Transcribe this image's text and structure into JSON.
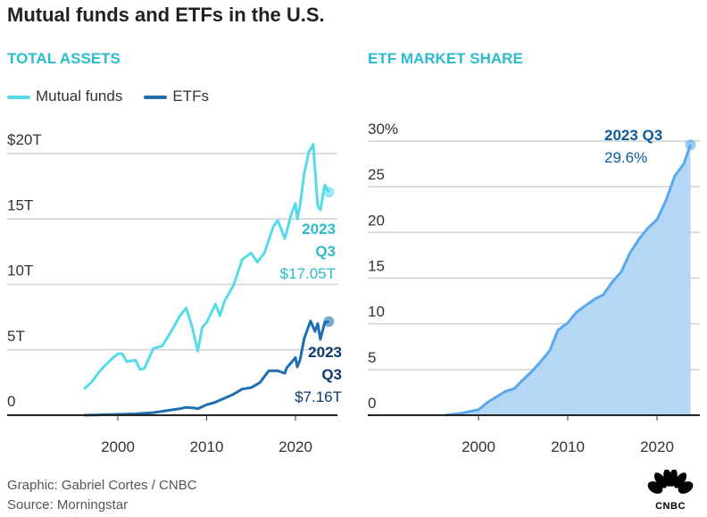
{
  "title": "Mutual funds and ETFs in the U.S.",
  "footer": {
    "graphic": "Graphic: Gabriel Cortes / CNBC",
    "source": "Source: Morningstar",
    "logo": "CNBC"
  },
  "chart_data": [
    {
      "type": "line",
      "title": "TOTAL ASSETS",
      "legend": "top-left",
      "grid": true,
      "ylim": [
        0,
        20
      ],
      "xlim": [
        1992.5,
        2024.5
      ],
      "y_ticks": [
        "0",
        "5T",
        "10T",
        "15T",
        "$20T"
      ],
      "y_tick_values": [
        0,
        5,
        10,
        15,
        20
      ],
      "x_ticks": [
        "2000",
        "2010",
        "2020"
      ],
      "x_tick_values": [
        2000,
        2010,
        2020
      ],
      "colors": {
        "Mutual funds": "#55dbe9",
        "ETFs": "#1f6fb0"
      },
      "series": [
        {
          "name": "Mutual funds",
          "x": [
            1996.2,
            1997,
            1998,
            1999,
            2000,
            2000.5,
            2001,
            2002,
            2002.5,
            2003,
            2004,
            2005,
            2006,
            2007,
            2007.7,
            2008.3,
            2009,
            2009.5,
            2010,
            2011,
            2011.5,
            2012,
            2013,
            2014,
            2015,
            2015.7,
            2016.5,
            2017.5,
            2018,
            2018.8,
            2019.5,
            2020,
            2020.2,
            2020.5,
            2021,
            2021.5,
            2022,
            2022.5,
            2022.8,
            2023.3,
            2023.75
          ],
          "y": [
            2.0,
            2.5,
            3.4,
            4.1,
            4.7,
            4.7,
            4.1,
            4.2,
            3.5,
            3.6,
            5.1,
            5.3,
            6.4,
            7.6,
            8.2,
            6.9,
            4.9,
            6.7,
            7.1,
            8.5,
            7.6,
            8.7,
            9.9,
            11.9,
            12.4,
            11.7,
            12.4,
            14.4,
            14.9,
            13.5,
            15.3,
            16.2,
            15.0,
            16.0,
            18.5,
            20.1,
            20.7,
            16.0,
            15.7,
            17.6,
            17.05
          ],
          "annotation": {
            "period": "2023",
            "quarter": "Q3",
            "value": "$17.05T"
          }
        },
        {
          "name": "ETFs",
          "x": [
            1996.2,
            1998,
            2000,
            2002,
            2004,
            2005,
            2006,
            2007,
            2007.7,
            2008.5,
            2009,
            2010,
            2011,
            2012,
            2013,
            2014,
            2015,
            2016,
            2017,
            2018,
            2018.8,
            2019,
            2020,
            2020.2,
            2020.5,
            2021,
            2021.7,
            2022.2,
            2022.5,
            2022.8,
            2023.3,
            2023.75
          ],
          "y": [
            0,
            0.03,
            0.07,
            0.1,
            0.2,
            0.3,
            0.4,
            0.5,
            0.6,
            0.55,
            0.5,
            0.8,
            1.0,
            1.3,
            1.6,
            2.0,
            2.1,
            2.5,
            3.4,
            3.4,
            3.2,
            3.6,
            4.4,
            3.7,
            4.2,
            5.9,
            7.2,
            6.4,
            7.0,
            5.8,
            7.1,
            7.16
          ],
          "annotation": {
            "period": "2023",
            "quarter": "Q3",
            "value": "$7.16T"
          }
        }
      ]
    },
    {
      "type": "area",
      "title": "ETF MARKET SHARE",
      "grid": true,
      "ylim": [
        0,
        30
      ],
      "xlim": [
        1987.5,
        2024.7
      ],
      "y_ticks": [
        "0",
        "5",
        "10",
        "15",
        "20",
        "25",
        "30%"
      ],
      "y_tick_values": [
        0,
        5,
        10,
        15,
        20,
        25,
        30
      ],
      "x_ticks": [
        "2000",
        "2010",
        "2020"
      ],
      "x_tick_values": [
        2000,
        2010,
        2020
      ],
      "colors": {
        "line": "#5aa9ec",
        "fill": "#b3d7f5",
        "label": "#0d5a9a"
      },
      "x": [
        1996.2,
        1998,
        1999,
        2000,
        2001,
        2002,
        2003,
        2004,
        2005,
        2006,
        2007,
        2008,
        2008.9,
        2010,
        2011,
        2012,
        2013,
        2014,
        2015,
        2016,
        2017,
        2018,
        2019,
        2020,
        2021,
        2022,
        2023,
        2023.75
      ],
      "y": [
        0,
        0.2,
        0.4,
        0.6,
        1.4,
        2.0,
        2.6,
        2.9,
        3.9,
        4.8,
        5.9,
        7.1,
        9.3,
        10.1,
        11.3,
        12.0,
        12.7,
        13.2,
        14.6,
        15.7,
        17.8,
        19.3,
        20.5,
        21.4,
        23.5,
        26.2,
        27.5,
        29.6
      ],
      "annotation": {
        "label": "2023 Q3",
        "value": "29.6%"
      }
    }
  ]
}
